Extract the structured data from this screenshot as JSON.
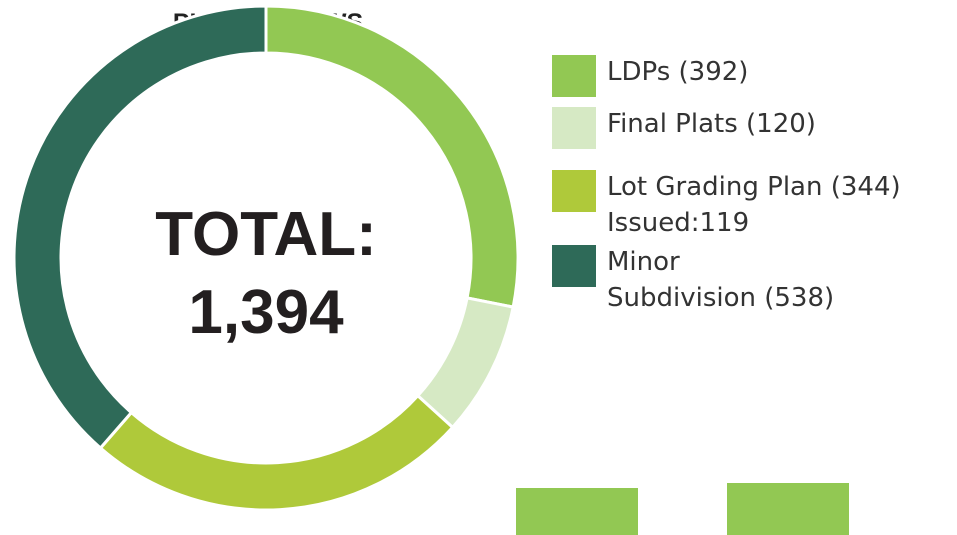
{
  "chart_data": {
    "type": "pie",
    "title": "PLAN REVIEWS",
    "categories": [
      "LDPs (392)",
      "Final Plats (120)",
      "Lot Grading Plan (344)\nIssued:119",
      "Minor\nSubdivision (538)"
    ],
    "values": [
      392,
      120,
      344,
      538
    ],
    "colors": [
      "#92c853",
      "#d6e9c4",
      "#afc93a",
      "#2e6a58"
    ],
    "center_label": [
      "TOTAL:",
      "1,394"
    ],
    "legend": "right"
  }
}
